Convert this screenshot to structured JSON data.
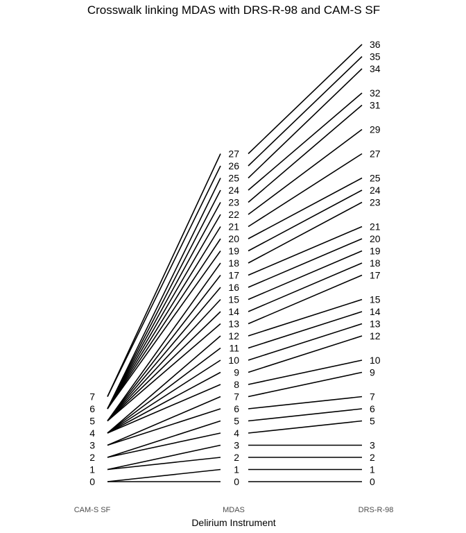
{
  "chart_data": {
    "type": "line",
    "title": "Crosswalk linking MDAS with DRS-R-98 and CAM-S SF",
    "xlabel": "Delirium Instrument",
    "ylabel": "",
    "categories": [
      "CAM-S SF",
      "MDAS",
      "DRS-R-98"
    ],
    "y_scale": "MDAS score units",
    "ylim": [
      0,
      36
    ],
    "grid": false,
    "cams_ticks": [
      0,
      1,
      2,
      3,
      4,
      5,
      6,
      7
    ],
    "cams_positions": [
      0,
      1,
      2,
      3,
      4,
      5,
      6,
      7
    ],
    "mdas_ticks": [
      0,
      1,
      2,
      3,
      4,
      5,
      6,
      7,
      8,
      9,
      10,
      11,
      12,
      13,
      14,
      15,
      16,
      17,
      18,
      19,
      20,
      21,
      22,
      23,
      24,
      25,
      26,
      27
    ],
    "mdas_positions": [
      0,
      1,
      2,
      3,
      4,
      5,
      6,
      7,
      8,
      9,
      10,
      11,
      12,
      13,
      14,
      15,
      16,
      17,
      18,
      19,
      20,
      21,
      22,
      23,
      24,
      25,
      26,
      27
    ],
    "drs_ticks": [
      0,
      1,
      2,
      3,
      5,
      6,
      7,
      9,
      10,
      12,
      13,
      14,
      15,
      17,
      18,
      19,
      20,
      21,
      23,
      24,
      25,
      27,
      29,
      31,
      32,
      34,
      35,
      36
    ],
    "drs_positions": [
      0,
      1,
      2,
      3,
      5,
      6,
      7,
      9,
      10,
      12,
      13,
      14,
      15,
      17,
      18,
      19,
      20,
      21,
      23,
      24,
      25,
      27,
      29,
      31,
      32,
      34,
      35,
      36
    ],
    "links_cams_to_mdas": [
      [
        0,
        0
      ],
      [
        0,
        1
      ],
      [
        1,
        2
      ],
      [
        1,
        3
      ],
      [
        2,
        4
      ],
      [
        2,
        5
      ],
      [
        3,
        6
      ],
      [
        3,
        7
      ],
      [
        4,
        8
      ],
      [
        4,
        9
      ],
      [
        4,
        10
      ],
      [
        4,
        11
      ],
      [
        4,
        12
      ],
      [
        5,
        13
      ],
      [
        5,
        14
      ],
      [
        5,
        15
      ],
      [
        5,
        16
      ],
      [
        5,
        17
      ],
      [
        5,
        18
      ],
      [
        6,
        19
      ],
      [
        6,
        20
      ],
      [
        6,
        21
      ],
      [
        6,
        22
      ],
      [
        6,
        23
      ],
      [
        6,
        24
      ],
      [
        6,
        25
      ],
      [
        7,
        26
      ],
      [
        7,
        27
      ]
    ],
    "links_mdas_to_drs": [
      [
        0,
        0
      ],
      [
        1,
        1
      ],
      [
        2,
        2
      ],
      [
        3,
        3
      ],
      [
        4,
        5
      ],
      [
        5,
        6
      ],
      [
        6,
        7
      ],
      [
        7,
        9
      ],
      [
        8,
        10
      ],
      [
        9,
        12
      ],
      [
        10,
        13
      ],
      [
        11,
        14
      ],
      [
        12,
        15
      ],
      [
        13,
        17
      ],
      [
        14,
        18
      ],
      [
        15,
        19
      ],
      [
        16,
        20
      ],
      [
        17,
        21
      ],
      [
        18,
        23
      ],
      [
        19,
        24
      ],
      [
        20,
        25
      ],
      [
        21,
        27
      ],
      [
        22,
        29
      ],
      [
        23,
        31
      ],
      [
        24,
        32
      ],
      [
        25,
        34
      ],
      [
        26,
        35
      ],
      [
        27,
        36
      ]
    ]
  }
}
